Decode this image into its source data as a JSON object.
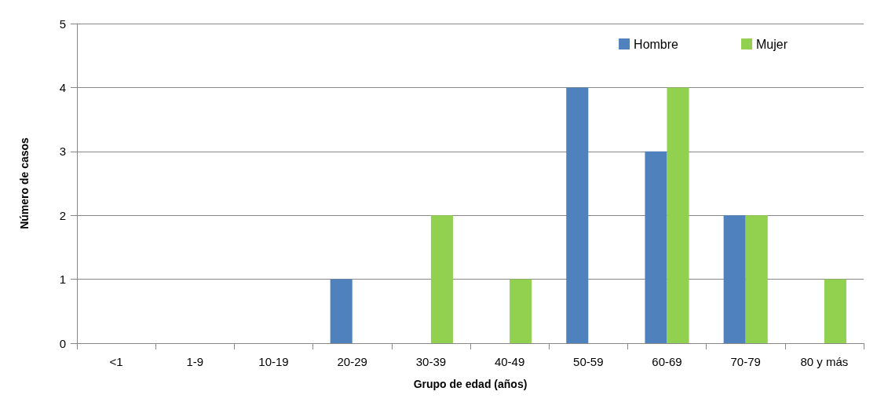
{
  "chart_data": {
    "type": "bar",
    "xlabel": "Grupo de edad (años)",
    "ylabel": "Número de casos",
    "categories": [
      "<1",
      "1-9",
      "10-19",
      "20-29",
      "30-39",
      "40-49",
      "50-59",
      "60-69",
      "70-79",
      "80 y más"
    ],
    "series": [
      {
        "name": "Hombre",
        "color": "#4f81bd",
        "values": [
          0,
          0,
          0,
          1,
          0,
          0,
          4,
          3,
          2,
          0
        ]
      },
      {
        "name": "Mujer",
        "color": "#92d050",
        "values": [
          0,
          0,
          0,
          0,
          2,
          1,
          0,
          4,
          2,
          1
        ]
      }
    ],
    "ylim": [
      0,
      5
    ],
    "yticks": [
      0,
      1,
      2,
      3,
      4,
      5
    ],
    "grid": "y",
    "legend": "top right"
  }
}
